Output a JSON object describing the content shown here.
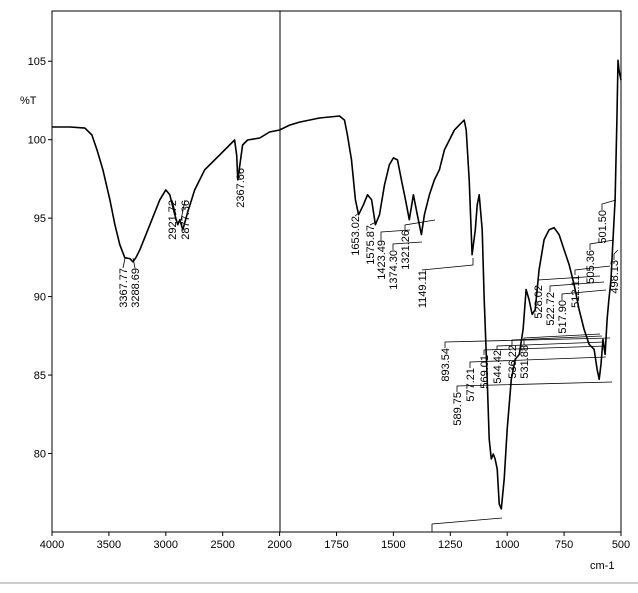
{
  "chart_data": {
    "type": "line",
    "xlabel": "cm-1",
    "ylabel": "%T",
    "color": "#000000",
    "xlim": [
      4000,
      500
    ],
    "xticks": [
      4000,
      3500,
      3000,
      2500,
      2000,
      1750,
      1500,
      1250,
      1000,
      750,
      500
    ],
    "ylim": [
      75,
      108.2
    ],
    "yticks": [
      80,
      85,
      90,
      95,
      100,
      105
    ],
    "x": [
      4000,
      3842,
      3711,
      3649,
      3605,
      3553,
      3491,
      3447,
      3404,
      3360,
      3316,
      3289,
      3263,
      3228,
      3140,
      3053,
      3000,
      2965,
      2921,
      2895,
      2877,
      2851,
      2807,
      2746,
      2658,
      2526,
      2395,
      2377,
      2367,
      2325,
      2281,
      2175,
      2088,
      2000,
      1956,
      1912,
      1825,
      1737,
      1715,
      1702,
      1684,
      1667,
      1653,
      1632,
      1614,
      1596,
      1579,
      1561,
      1539,
      1518,
      1500,
      1482,
      1465,
      1447,
      1430,
      1412,
      1395,
      1377,
      1364,
      1342,
      1320,
      1298,
      1276,
      1254,
      1232,
      1211,
      1189,
      1180,
      1167,
      1154,
      1140,
      1132,
      1123,
      1110,
      1101,
      1088,
      1079,
      1070,
      1061,
      1053,
      1044,
      1035,
      1026,
      1013,
      1000,
      982,
      965,
      947,
      930,
      917,
      904,
      890,
      877,
      860,
      838,
      816,
      794,
      772,
      750,
      728,
      706,
      684,
      662,
      640,
      618,
      605,
      596,
      588,
      579,
      570,
      561,
      553,
      544,
      535,
      526,
      518,
      513,
      509,
      500
    ],
    "values": [
      100.81,
      100.81,
      100.74,
      100.3,
      99.35,
      98.08,
      96.17,
      94.58,
      93.31,
      92.48,
      92.42,
      92.22,
      92.48,
      92.99,
      94.58,
      96.17,
      96.8,
      96.49,
      95.22,
      94.58,
      94.9,
      94.26,
      95.41,
      96.8,
      98.08,
      99.03,
      99.98,
      99.0,
      97.44,
      99.66,
      99.98,
      100.11,
      100.49,
      100.62,
      100.93,
      101.12,
      101.38,
      101.51,
      101.25,
      100.3,
      98.71,
      96.17,
      95.22,
      95.85,
      96.49,
      96.17,
      94.58,
      95.22,
      97.12,
      98.39,
      98.84,
      98.71,
      97.44,
      96.17,
      94.9,
      96.49,
      95.22,
      93.95,
      95.22,
      96.49,
      97.44,
      98.08,
      99.35,
      99.98,
      100.62,
      100.93,
      101.25,
      100.62,
      97.44,
      92.67,
      94.26,
      95.85,
      96.49,
      94.26,
      89.82,
      84.73,
      80.92,
      79.65,
      79.97,
      79.65,
      79.02,
      76.79,
      76.47,
      78.38,
      81.56,
      84.73,
      86.0,
      86.32,
      87.91,
      90.45,
      89.82,
      88.86,
      89.18,
      91.72,
      93.63,
      94.26,
      94.39,
      93.95,
      92.99,
      92.04,
      90.77,
      89.18,
      87.91,
      86.96,
      86.64,
      85.37,
      84.73,
      85.69,
      87.27,
      86.32,
      88.54,
      89.82,
      91.09,
      93.63,
      96.17,
      101.25,
      105.06,
      104.43,
      103.79
    ],
    "annotations": [
      "3367.77",
      "3288.69",
      "2921.72",
      "2877.36",
      "2367.66",
      "1653.02",
      "1575.87",
      "1423.49",
      "1374.30",
      "1321.26",
      "1149.11",
      "893.54",
      "589.75",
      "577.21",
      "569.01",
      "544.42",
      "536.22",
      "531.88",
      "528.02",
      "522.72",
      "517.90",
      "512.11",
      "505.36",
      "501.50",
      "498.13"
    ]
  }
}
